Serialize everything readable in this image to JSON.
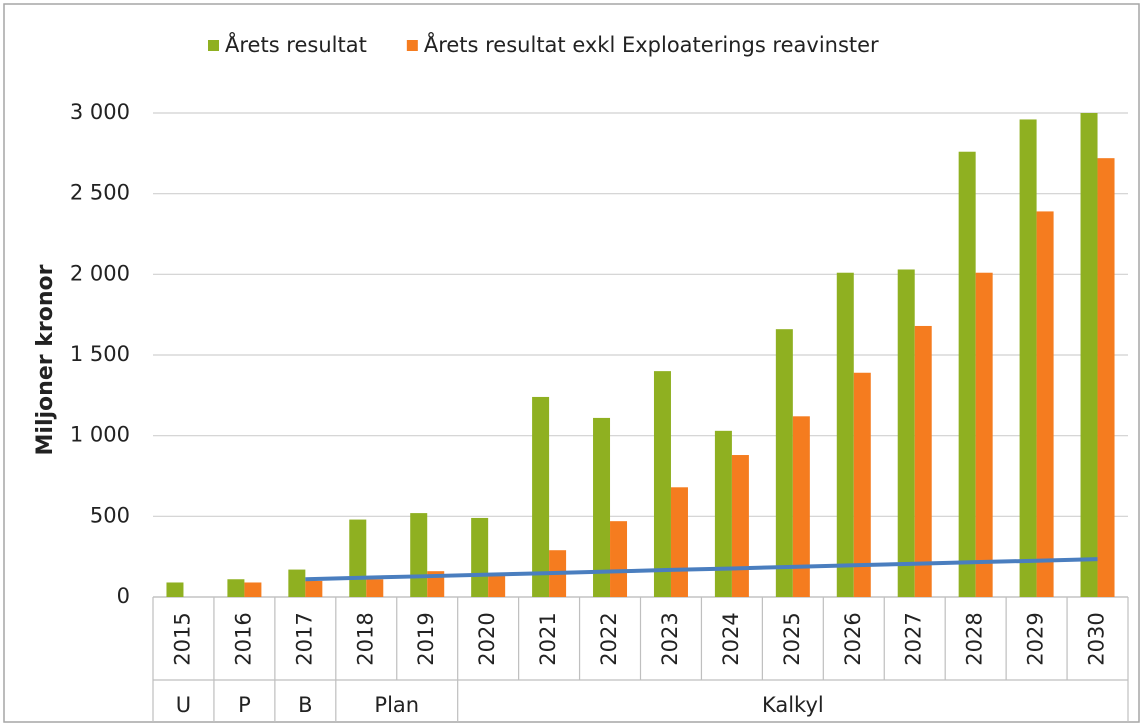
{
  "chart_data": {
    "type": "bar",
    "y_label": "Miljoner kronor",
    "categories": [
      "2015",
      "2016",
      "2017",
      "2018",
      "2019",
      "2020",
      "2021",
      "2022",
      "2023",
      "2024",
      "2025",
      "2026",
      "2027",
      "2028",
      "2029",
      "2030"
    ],
    "series": [
      {
        "name": "Årets resultat",
        "color": "#8fb021",
        "values": [
          90,
          110,
          170,
          480,
          520,
          490,
          1240,
          1110,
          1400,
          1030,
          1660,
          2010,
          2030,
          2760,
          2960,
          3000
        ]
      },
      {
        "name": "Årets resultat exkl Exploaterings reavinster",
        "color": "#f57c1f",
        "values": [
          0,
          90,
          100,
          110,
          160,
          130,
          290,
          470,
          680,
          880,
          1120,
          1390,
          1680,
          2010,
          2390,
          2720
        ]
      }
    ],
    "trend": {
      "type": "line",
      "color": "#4a7ebf",
      "values": [
        null,
        null,
        110,
        120,
        129,
        139,
        148,
        158,
        168,
        177,
        187,
        197,
        206,
        216,
        225,
        235
      ]
    },
    "groups": [
      {
        "label": "U",
        "span": 1
      },
      {
        "label": "P",
        "span": 1
      },
      {
        "label": "B",
        "span": 1
      },
      {
        "label": "Plan",
        "span": 2
      },
      {
        "label": "Kalkyl",
        "span": 11
      }
    ],
    "ylim": [
      0,
      3000
    ],
    "yticks": [
      0,
      500,
      {
        "value": 1000,
        "label": "1 000"
      },
      {
        "value": 1500,
        "label": "1 500"
      },
      {
        "value": 2000,
        "label": "2 000"
      },
      {
        "value": 2500,
        "label": "2 500"
      },
      {
        "value": 3000,
        "label": "3 000"
      }
    ],
    "grid": true,
    "legend": "top"
  }
}
